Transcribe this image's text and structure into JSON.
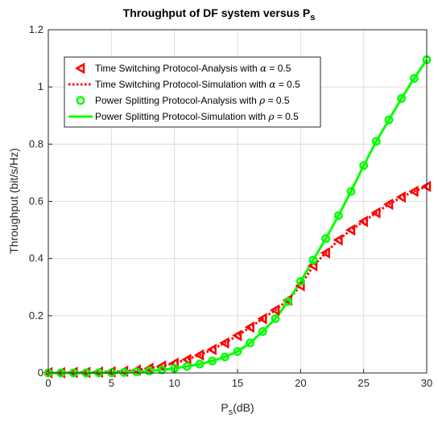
{
  "chart_data": {
    "type": "line",
    "title": "Throughput of DF system versus P",
    "title_subscript": "s",
    "xlabel": "P",
    "xlabel_subscript": "s",
    "xlabel_suffix": "(dB)",
    "ylabel": "Throughput (bit/s/Hz)",
    "xlim": [
      0,
      30
    ],
    "ylim": [
      0,
      1.2
    ],
    "xticks": [
      0,
      5,
      10,
      15,
      20,
      25,
      30
    ],
    "yticks": [
      0,
      0.2,
      0.4,
      0.6,
      0.8,
      1,
      1.2
    ],
    "xtick_labels": [
      "0",
      "5",
      "10",
      "15",
      "20",
      "25",
      "30"
    ],
    "ytick_labels": [
      "0",
      "0.2",
      "0.4",
      "0.6",
      "0.8",
      "1",
      "1.2"
    ],
    "grid": true,
    "legend_position": "top-left",
    "x": [
      0,
      1,
      2,
      3,
      4,
      5,
      6,
      7,
      8,
      9,
      10,
      11,
      12,
      13,
      14,
      15,
      16,
      17,
      18,
      19,
      20,
      21,
      22,
      23,
      24,
      25,
      26,
      27,
      28,
      29,
      30
    ],
    "series": [
      {
        "name": "Time Switching Protocol-Analysis with",
        "symbol": "α",
        "value_text": " = 0.5",
        "style": "marker-triangle-left",
        "color": "#ff0000",
        "values": [
          0.001,
          0.001,
          0.002,
          0.002,
          0.003,
          0.004,
          0.006,
          0.01,
          0.016,
          0.024,
          0.034,
          0.047,
          0.063,
          0.082,
          0.105,
          0.131,
          0.16,
          0.19,
          0.22,
          0.255,
          0.305,
          0.375,
          0.42,
          0.465,
          0.5,
          0.53,
          0.56,
          0.59,
          0.615,
          0.635,
          0.652
        ]
      },
      {
        "name": "Time Switching Protocol-Simulation with",
        "symbol": "α",
        "value_text": " = 0.5",
        "style": "dotted-line",
        "color": "#ff0000",
        "values": [
          0.001,
          0.001,
          0.002,
          0.002,
          0.003,
          0.004,
          0.006,
          0.01,
          0.016,
          0.024,
          0.034,
          0.047,
          0.063,
          0.082,
          0.105,
          0.131,
          0.16,
          0.19,
          0.22,
          0.255,
          0.305,
          0.375,
          0.42,
          0.465,
          0.5,
          0.53,
          0.56,
          0.59,
          0.615,
          0.635,
          0.652
        ]
      },
      {
        "name": "Power Splitting Protocol-Analysis with",
        "symbol": "ρ",
        "value_text": " = 0.5",
        "style": "marker-circle",
        "color": "#00ff00",
        "values": [
          0.0,
          0.0,
          0.0,
          0.0,
          0.001,
          0.001,
          0.002,
          0.004,
          0.007,
          0.011,
          0.016,
          0.023,
          0.031,
          0.042,
          0.056,
          0.075,
          0.105,
          0.145,
          0.19,
          0.25,
          0.32,
          0.395,
          0.47,
          0.55,
          0.635,
          0.725,
          0.81,
          0.885,
          0.96,
          1.03,
          1.095
        ]
      },
      {
        "name": "Power Splitting Protocol-Simulation with",
        "symbol": "ρ",
        "value_text": " = 0.5",
        "style": "solid-line",
        "color": "#00ff00",
        "values": [
          0.0,
          0.0,
          0.0,
          0.0,
          0.001,
          0.001,
          0.002,
          0.004,
          0.007,
          0.011,
          0.016,
          0.023,
          0.031,
          0.042,
          0.056,
          0.075,
          0.105,
          0.145,
          0.19,
          0.25,
          0.32,
          0.395,
          0.47,
          0.55,
          0.635,
          0.725,
          0.81,
          0.885,
          0.96,
          1.03,
          1.095
        ]
      }
    ]
  }
}
